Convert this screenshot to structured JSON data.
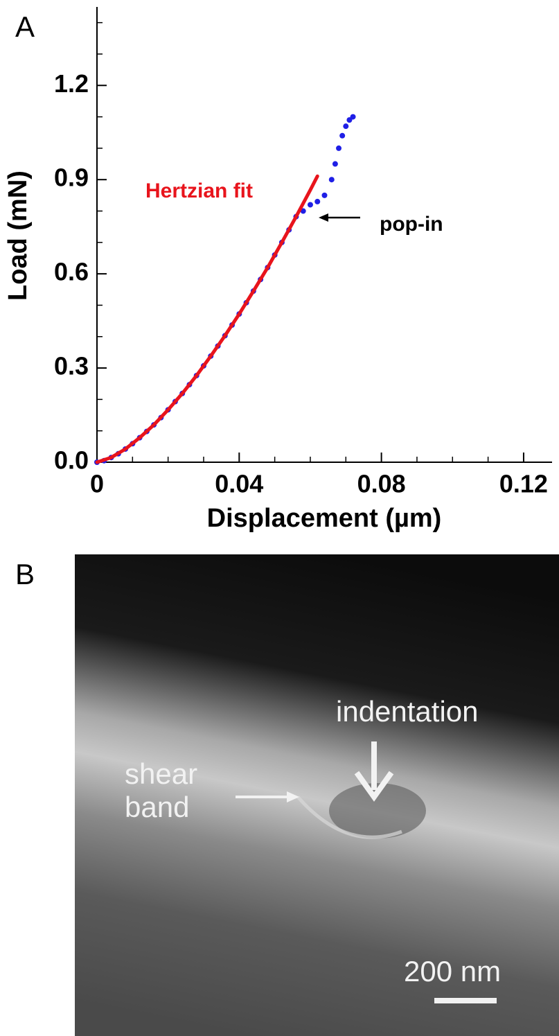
{
  "chart_data": {
    "type": "scatter",
    "panel_label": "A",
    "xlabel": "Displacement (µm)",
    "ylabel": "Load (mN)",
    "xlim": [
      0,
      0.128
    ],
    "ylim": [
      0,
      1.45
    ],
    "xticks": [
      0,
      0.04,
      0.08,
      0.12
    ],
    "yticks": [
      {
        "value": 0,
        "label": "0.0"
      },
      0.3,
      0.6,
      0.9,
      1.2
    ],
    "xminorticks": [
      0.01,
      0.02,
      0.03,
      0.05,
      0.06,
      0.07,
      0.09,
      0.1,
      0.11
    ],
    "yminorticks": [
      0.1,
      0.2,
      0.4,
      0.5,
      0.7,
      0.8,
      1.0,
      1.1,
      1.3,
      1.4
    ],
    "grid": false,
    "series": [
      {
        "type": "scatter",
        "color": "#1f1fe6",
        "x": [
          0,
          0.002,
          0.004,
          0.006,
          0.008,
          0.01,
          0.012,
          0.014,
          0.016,
          0.018,
          0.02,
          0.022,
          0.024,
          0.026,
          0.028,
          0.03,
          0.032,
          0.034,
          0.036,
          0.038,
          0.04,
          0.042,
          0.044,
          0.046,
          0.048,
          0.05,
          0.052,
          0.054,
          0.056,
          0.058,
          0.06,
          0.062,
          0.064,
          0.066,
          0.067,
          0.068,
          0.069,
          0.07,
          0.071,
          0.072
        ],
        "values": [
          0,
          0.005,
          0.015,
          0.027,
          0.042,
          0.059,
          0.078,
          0.098,
          0.119,
          0.142,
          0.167,
          0.193,
          0.219,
          0.247,
          0.276,
          0.307,
          0.338,
          0.37,
          0.403,
          0.437,
          0.472,
          0.508,
          0.545,
          0.582,
          0.62,
          0.66,
          0.7,
          0.74,
          0.782,
          0.8,
          0.82,
          0.83,
          0.85,
          0.9,
          0.95,
          1.0,
          1.04,
          1.07,
          1.09,
          1.1
        ]
      },
      {
        "type": "line",
        "name": "Hertzian fit",
        "color": "#e8141c",
        "x": [
          0,
          0.004,
          0.008,
          0.012,
          0.016,
          0.02,
          0.024,
          0.028,
          0.032,
          0.036,
          0.04,
          0.044,
          0.048,
          0.052,
          0.056,
          0.06,
          0.062
        ],
        "values": [
          0,
          0.015,
          0.042,
          0.078,
          0.119,
          0.167,
          0.219,
          0.276,
          0.338,
          0.403,
          0.472,
          0.545,
          0.62,
          0.7,
          0.782,
          0.867,
          0.911
        ]
      }
    ],
    "annotations": [
      {
        "text": "pop-in",
        "x": 0.062,
        "y": 0.81
      }
    ]
  },
  "image": {
    "panel_label": "B",
    "indentation": "indentation",
    "shear_band": [
      "shear",
      "band"
    ],
    "scale_bar": "200 nm"
  }
}
